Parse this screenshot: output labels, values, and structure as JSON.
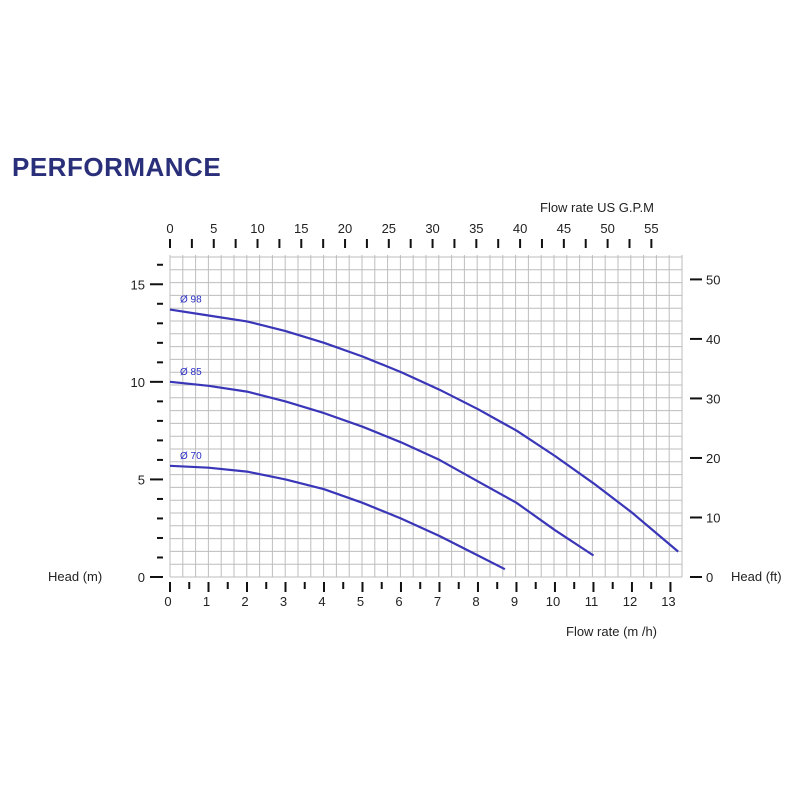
{
  "title": "PERFORMANCE",
  "chart_data": {
    "type": "line",
    "grid": true,
    "x_bottom": {
      "label": "Flow rate  (m /h)",
      "range": [
        0,
        13.3
      ],
      "ticks": [
        0,
        1,
        2,
        3,
        4,
        5,
        6,
        7,
        8,
        9,
        10,
        11,
        12,
        13
      ]
    },
    "x_top": {
      "label": "Flow rate US  G.P.M",
      "range": [
        0,
        58.5
      ],
      "ticks": [
        0,
        5,
        10,
        15,
        20,
        25,
        30,
        35,
        40,
        45,
        50,
        55
      ]
    },
    "y_left": {
      "label": "Head (m)",
      "range": [
        0,
        16.5
      ],
      "ticks": [
        0,
        5,
        10,
        15
      ]
    },
    "y_right": {
      "label": "Head (ft)",
      "range": [
        0,
        54.1
      ],
      "ticks": [
        0,
        10,
        20,
        30,
        40,
        50
      ]
    },
    "series": [
      {
        "name": "Ø 98",
        "color": "#3a36b8",
        "x": [
          0,
          1,
          2,
          3,
          4,
          5,
          6,
          7,
          8,
          9,
          10,
          11,
          12,
          13.2
        ],
        "y": [
          13.7,
          13.4,
          13.1,
          12.6,
          12.0,
          11.3,
          10.5,
          9.6,
          8.6,
          7.5,
          6.2,
          4.8,
          3.3,
          1.3
        ]
      },
      {
        "name": "Ø 85",
        "color": "#3a36b8",
        "x": [
          0,
          1,
          2,
          3,
          4,
          5,
          6,
          7,
          8,
          9,
          10,
          11
        ],
        "y": [
          10.0,
          9.8,
          9.5,
          9.0,
          8.4,
          7.7,
          6.9,
          6.0,
          4.9,
          3.8,
          2.4,
          1.1
        ]
      },
      {
        "name": "Ø 70",
        "color": "#3a36b8",
        "x": [
          0,
          1,
          2,
          3,
          4,
          5,
          6,
          7,
          8,
          8.7
        ],
        "y": [
          5.7,
          5.6,
          5.4,
          5.0,
          4.5,
          3.8,
          3.0,
          2.1,
          1.1,
          0.4
        ]
      }
    ]
  }
}
